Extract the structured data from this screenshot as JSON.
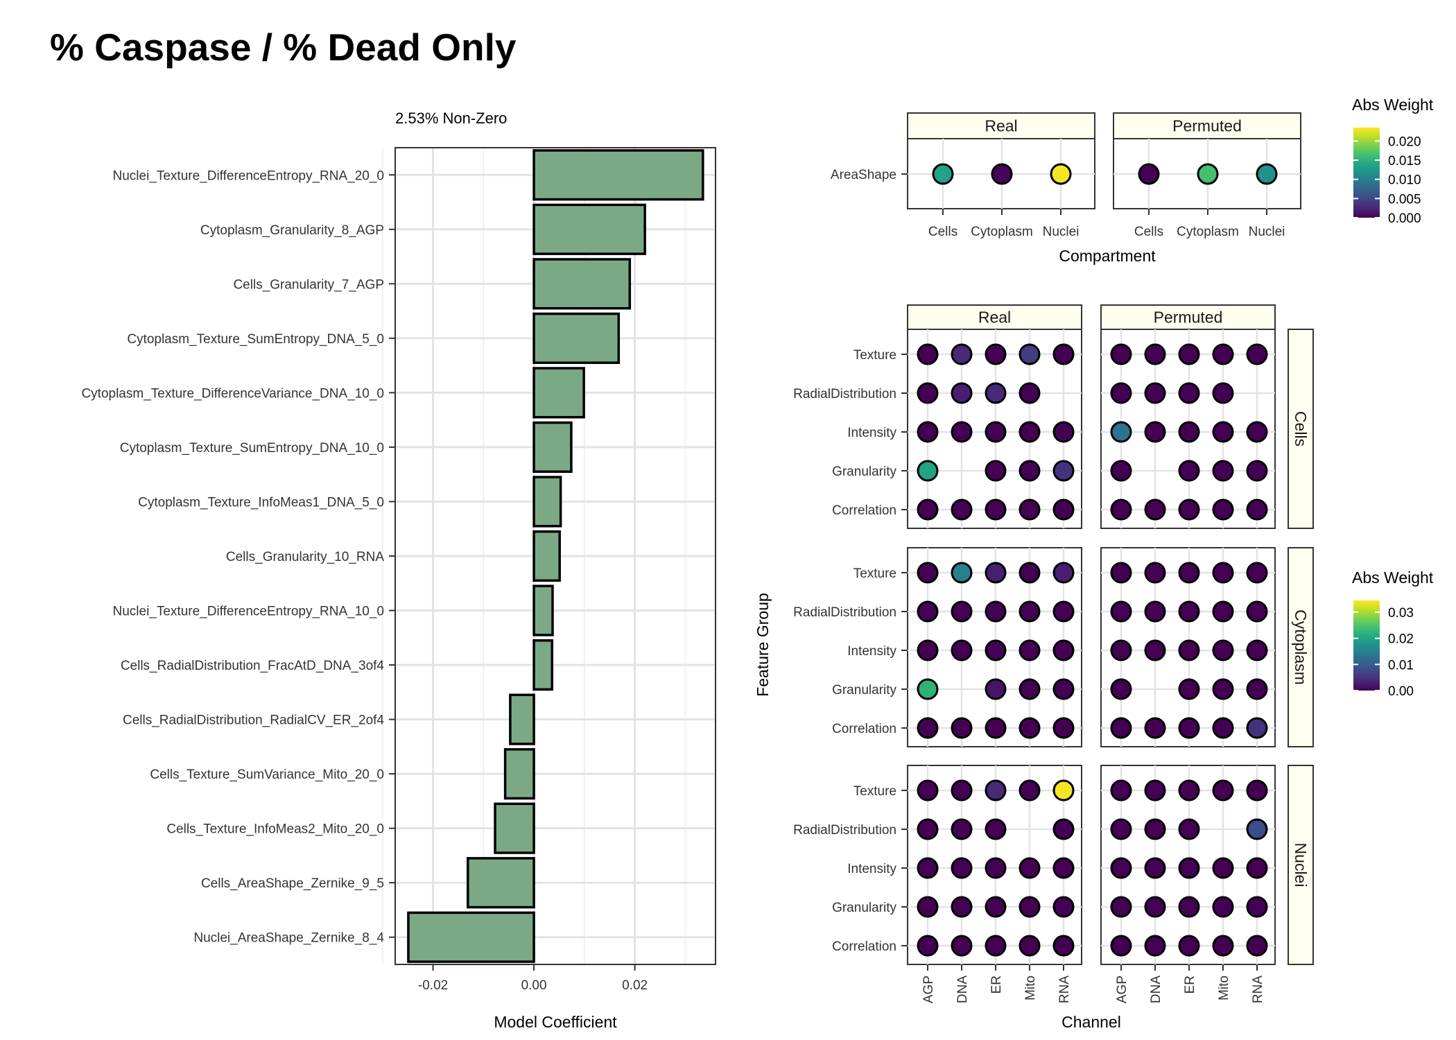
{
  "title": "% Caspase / % Dead Only",
  "chart_data": [
    {
      "type": "bar",
      "orientation": "horizontal",
      "subtitle": "2.53% Non-Zero",
      "xlabel": "Model Coefficient",
      "ylabel": "",
      "xlim": [
        -0.0275,
        0.036
      ],
      "xticks": [
        -0.02,
        0.0,
        0.02
      ],
      "xtick_labels": [
        "-0.02",
        "0.00",
        "0.02"
      ],
      "grid": true,
      "bar_color": "#7BA986",
      "categories": [
        "Nuclei_Texture_DifferenceEntropy_RNA_20_0",
        "Cytoplasm_Granularity_8_AGP",
        "Cells_Granularity_7_AGP",
        "Cytoplasm_Texture_SumEntropy_DNA_5_0",
        "Cytoplasm_Texture_DifferenceVariance_DNA_10_0",
        "Cytoplasm_Texture_SumEntropy_DNA_10_0",
        "Cytoplasm_Texture_InfoMeas1_DNA_5_0",
        "Cells_Granularity_10_RNA",
        "Nuclei_Texture_DifferenceEntropy_RNA_10_0",
        "Cells_RadialDistribution_FracAtD_DNA_3of4",
        "Cells_RadialDistribution_RadialCV_ER_2of4",
        "Cells_Texture_SumVariance_Mito_20_0",
        "Cells_Texture_InfoMeas2_Mito_20_0",
        "Cells_AreaShape_Zernike_9_5",
        "Nuclei_AreaShape_Zernike_8_4"
      ],
      "values": [
        0.0335,
        0.022,
        0.019,
        0.0168,
        0.0099,
        0.0074,
        0.0053,
        0.0051,
        0.0037,
        0.0036,
        -0.0047,
        -0.0057,
        -0.0077,
        -0.0131,
        -0.0249
      ]
    },
    {
      "type": "heatmap",
      "style": "dot",
      "facets": [
        "Real",
        "Permuted"
      ],
      "xlabel": "Compartment",
      "ylabel": "",
      "x": [
        "Cells",
        "Cytoplasm",
        "Nuclei"
      ],
      "y": [
        "AreaShape"
      ],
      "values": {
        "Real": [
          [
            0.0135,
            0.0003,
            0.0232
          ]
        ],
        "Permuted": [
          [
            0.0001,
            0.0165,
            0.0118
          ]
        ]
      },
      "legend": {
        "title": "Abs Weight",
        "ticks": [
          0.0,
          0.005,
          0.01,
          0.015,
          0.02
        ],
        "tick_labels": [
          "0.000",
          "0.005",
          "0.010",
          "0.015",
          "0.020"
        ],
        "max": 0.0235,
        "colormap": "viridis"
      }
    },
    {
      "type": "heatmap",
      "style": "dot",
      "column_facets": [
        "Real",
        "Permuted"
      ],
      "row_facets": [
        "Cells",
        "Cytoplasm",
        "Nuclei"
      ],
      "xlabel": "Channel",
      "ylabel": "Feature Group",
      "x": [
        "AGP",
        "DNA",
        "ER",
        "Mito",
        "RNA"
      ],
      "y": [
        "Texture",
        "RadialDistribution",
        "Intensity",
        "Granularity",
        "Correlation"
      ],
      "values": {
        "Cells": {
          "Real": [
            [
              0.0,
              0.004,
              0.0,
              0.006,
              0.0
            ],
            [
              0.0,
              0.003,
              0.004,
              0.0,
              null
            ],
            [
              0.0,
              0.0,
              0.0,
              0.0,
              0.0
            ],
            [
              0.02,
              null,
              0.0,
              0.0,
              0.005
            ],
            [
              0.0,
              0.0,
              0.0,
              0.0,
              0.0
            ]
          ],
          "Permuted": [
            [
              0.0,
              0.0,
              0.0,
              0.0,
              0.0
            ],
            [
              0.0,
              0.0,
              0.0,
              0.0,
              null
            ],
            [
              0.013,
              0.0,
              0.0,
              0.0,
              0.0
            ],
            [
              0.0,
              null,
              0.0,
              0.0,
              0.0
            ],
            [
              0.0,
              0.0,
              0.0,
              0.0,
              0.0
            ]
          ]
        },
        "Cytoplasm": {
          "Real": [
            [
              0.0,
              0.015,
              0.003,
              0.0,
              0.003
            ],
            [
              0.0,
              0.0,
              0.0,
              0.0,
              0.0
            ],
            [
              0.0,
              0.0,
              0.0,
              0.0,
              0.0
            ],
            [
              0.022,
              null,
              0.002,
              0.0,
              0.0
            ],
            [
              0.0,
              0.0,
              0.0,
              0.0,
              0.0
            ]
          ],
          "Permuted": [
            [
              0.0,
              0.0,
              0.0,
              0.0,
              0.0
            ],
            [
              0.0,
              0.0,
              0.0,
              0.0,
              0.0
            ],
            [
              0.0,
              0.0,
              0.0,
              0.0,
              0.0
            ],
            [
              0.0,
              null,
              0.0,
              0.0,
              0.0
            ],
            [
              0.0,
              0.0,
              0.0,
              0.0,
              0.005
            ]
          ]
        },
        "Nuclei": {
          "Real": [
            [
              0.0,
              0.0,
              0.004,
              0.0,
              0.034
            ],
            [
              0.0,
              0.0,
              0.0,
              null,
              0.0
            ],
            [
              0.0,
              0.0,
              0.0,
              0.0,
              0.0
            ],
            [
              0.0,
              0.0,
              0.0,
              0.0,
              0.0
            ],
            [
              0.0,
              0.0,
              0.0,
              0.0,
              0.0
            ]
          ],
          "Permuted": [
            [
              0.0,
              0.0,
              0.0,
              0.0,
              0.0
            ],
            [
              0.0,
              0.0,
              0.0,
              null,
              0.008
            ],
            [
              0.0,
              0.0,
              0.0,
              0.0,
              0.0
            ],
            [
              0.0,
              0.0,
              0.0,
              0.0,
              0.0
            ],
            [
              0.0,
              0.0,
              0.0,
              0.0,
              0.0
            ]
          ]
        }
      },
      "legend": {
        "title": "Abs Weight",
        "ticks": [
          0.0,
          0.01,
          0.02,
          0.03
        ],
        "tick_labels": [
          "0.00",
          "0.01",
          "0.02",
          "0.03"
        ],
        "max": 0.0345,
        "colormap": "viridis"
      }
    }
  ]
}
